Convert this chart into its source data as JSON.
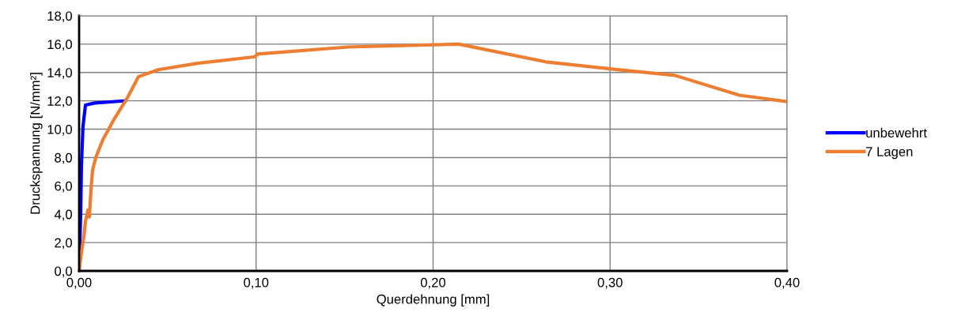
{
  "chart_data": {
    "type": "line",
    "xlabel": "Querdehnung [mm]",
    "ylabel": "Druckspannung [N/mm²]",
    "xlim": [
      0,
      0.4
    ],
    "ylim": [
      0,
      18
    ],
    "xticks": [
      {
        "value": 0,
        "label": "0,00"
      },
      {
        "value": 0.1,
        "label": "0,10"
      },
      {
        "value": 0.2,
        "label": "0,20"
      },
      {
        "value": 0.3,
        "label": "0,30"
      },
      {
        "value": 0.4,
        "label": "0,40"
      }
    ],
    "yticks": [
      {
        "value": 0,
        "label": "0,0"
      },
      {
        "value": 2,
        "label": "2,0"
      },
      {
        "value": 4,
        "label": "4,0"
      },
      {
        "value": 6,
        "label": "6,0"
      },
      {
        "value": 8,
        "label": "8,0"
      },
      {
        "value": 10,
        "label": "10,0"
      },
      {
        "value": 12,
        "label": "12,0"
      },
      {
        "value": 14,
        "label": "14,0"
      },
      {
        "value": 16,
        "label": "16,0"
      },
      {
        "value": 18,
        "label": "18,0"
      }
    ],
    "grid": true,
    "legend": "right",
    "marker": "none",
    "line_style": "solid",
    "series": [
      {
        "name": "unbewehrt",
        "color": "#0000ff",
        "x": [
          0,
          0.0009,
          0.0013,
          0.0022,
          0.0036,
          0.0089,
          0.026
        ],
        "values": [
          0,
          4.0,
          7.4,
          10.2,
          11.7,
          11.85,
          12.0
        ]
      },
      {
        "name": "7 Lagen",
        "color": "#ed7d31",
        "x": [
          0,
          0.0013,
          0.0027,
          0.0036,
          0.005,
          0.0058,
          0.0067,
          0.0076,
          0.0094,
          0.0134,
          0.02,
          0.027,
          0.0335,
          0.0447,
          0.067,
          0.099,
          0.101,
          0.152,
          0.2145,
          0.2637,
          0.304,
          0.3365,
          0.373,
          0.4
        ],
        "values": [
          0,
          1.3,
          2.4,
          3.5,
          4.3,
          3.8,
          5.7,
          7.1,
          8.0,
          9.25,
          10.75,
          12.15,
          13.7,
          14.2,
          14.65,
          15.1,
          15.3,
          15.8,
          16.0,
          14.75,
          14.2,
          13.8,
          12.4,
          11.95
        ]
      }
    ]
  }
}
